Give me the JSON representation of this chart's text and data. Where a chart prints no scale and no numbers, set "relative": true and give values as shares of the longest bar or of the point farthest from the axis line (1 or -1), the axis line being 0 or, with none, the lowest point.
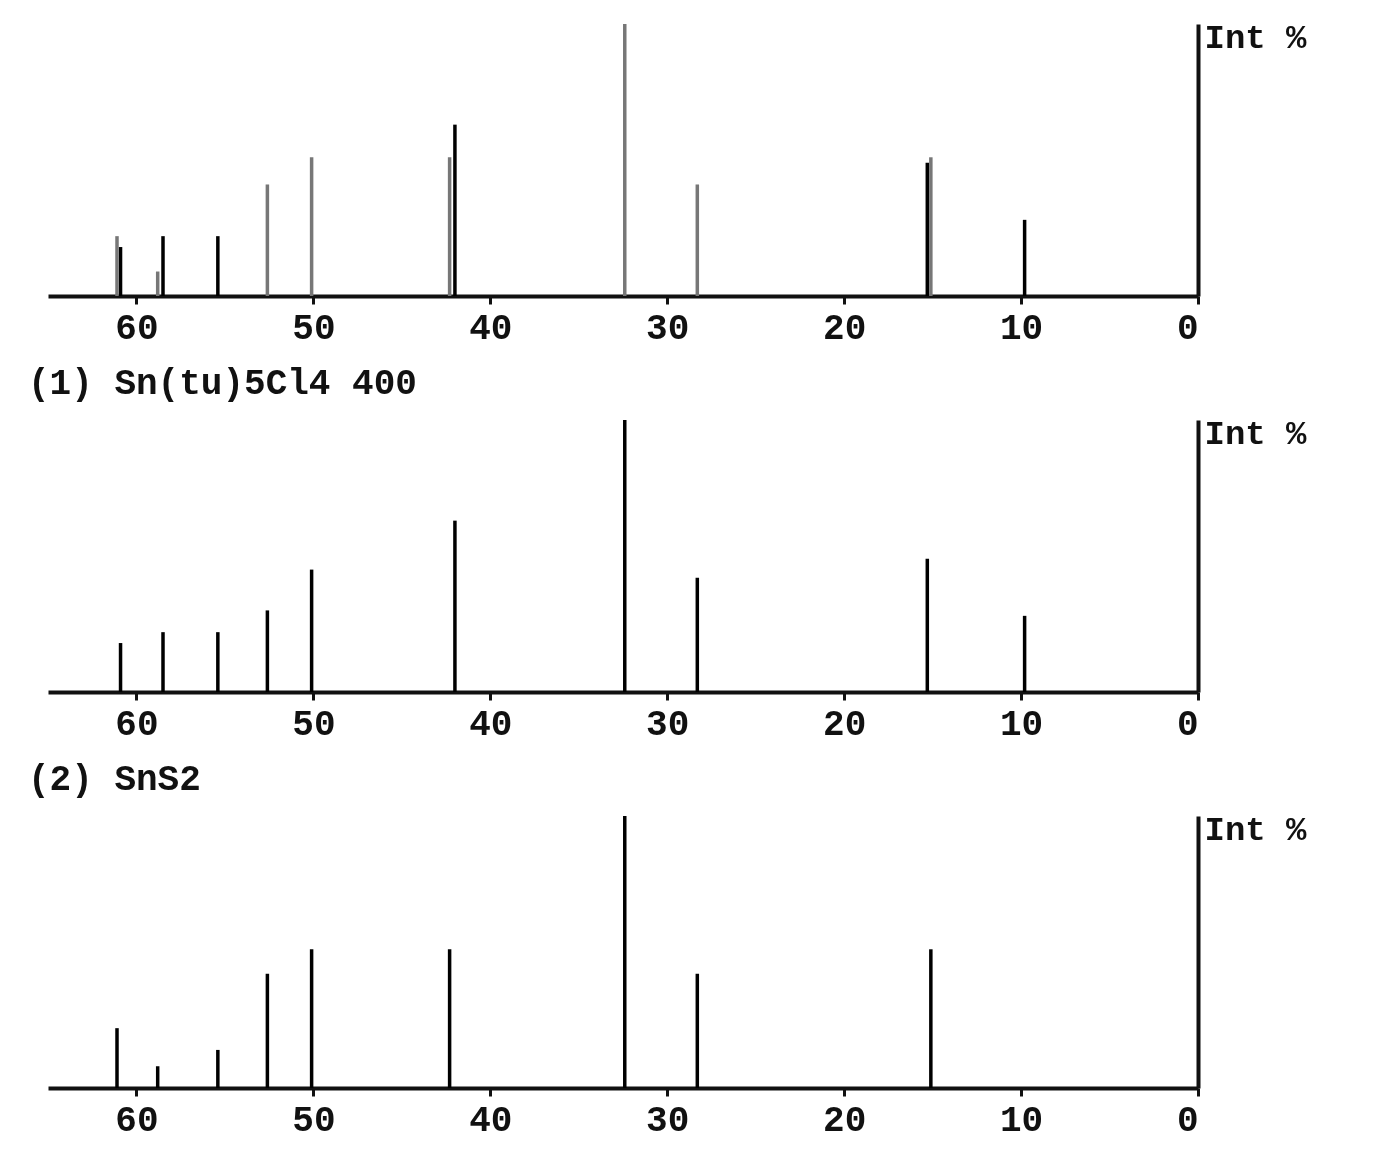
{
  "chart_data": [
    {
      "type": "bar",
      "relative": true,
      "xlim": [
        65,
        0
      ],
      "xticks": [
        60,
        50,
        40,
        30,
        20,
        10,
        0
      ],
      "ylabel": "Int %",
      "series": [
        {
          "color": "#000000",
          "x": [
            60.9,
            58.5,
            55.4,
            42.0,
            15.3,
            9.8
          ],
          "values": [
            0.18,
            0.22,
            0.22,
            0.63,
            0.49,
            0.28
          ]
        },
        {
          "color": "#777777",
          "x": [
            61.1,
            58.8,
            52.6,
            50.1,
            42.3,
            32.4,
            28.3,
            15.1
          ],
          "values": [
            0.22,
            0.09,
            0.41,
            0.51,
            0.51,
            1.0,
            0.41,
            0.51
          ]
        }
      ]
    },
    {
      "type": "bar",
      "relative": true,
      "title": "(1) Sn(tu)5Cl4 400",
      "xlim": [
        65,
        0
      ],
      "xticks": [
        60,
        50,
        40,
        30,
        20,
        10,
        0
      ],
      "ylabel": "Int %",
      "series": [
        {
          "color": "#000000",
          "line_style": "solid",
          "x": [
            60.9,
            58.5,
            55.4,
            52.6,
            50.1,
            42.0,
            32.4,
            28.3,
            15.3,
            9.8
          ],
          "values": [
            0.18,
            0.22,
            0.22,
            0.3,
            0.45,
            0.63,
            1.0,
            0.42,
            0.49,
            0.28
          ]
        }
      ]
    },
    {
      "type": "bar",
      "relative": true,
      "title": "(2) SnS2",
      "xlim": [
        65,
        0
      ],
      "xticks": [
        60,
        50,
        40,
        30,
        20,
        10,
        0
      ],
      "ylabel": "Int %",
      "series": [
        {
          "color": "#000000",
          "line_style": "solid",
          "x": [
            61.1,
            58.8,
            55.4,
            52.6,
            50.1,
            42.3,
            32.4,
            28.3,
            15.1
          ],
          "values": [
            0.22,
            0.08,
            0.14,
            0.42,
            0.51,
            0.51,
            1.0,
            0.42,
            0.51
          ]
        }
      ]
    }
  ]
}
